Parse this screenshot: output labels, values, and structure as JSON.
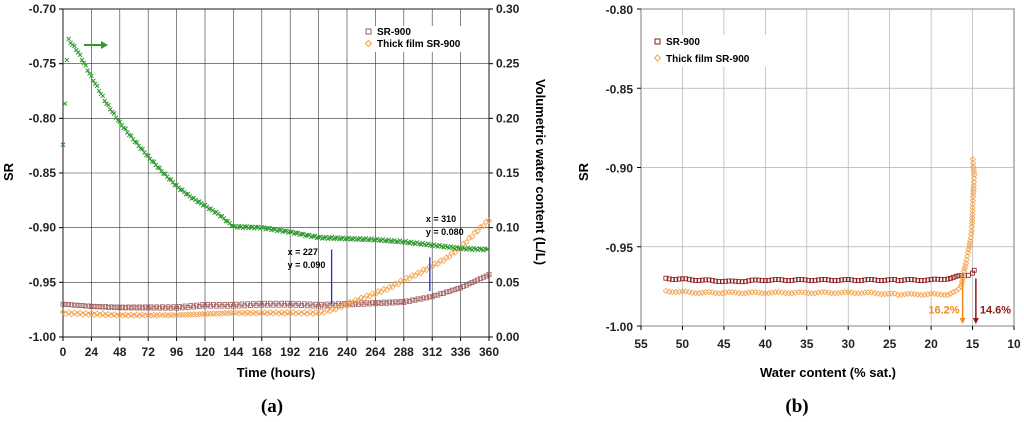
{
  "chart_data": [
    {
      "panel": "(a)",
      "type": "scatter",
      "xlabel": "Time (hours)",
      "ylabel": "SR",
      "y2label": "Volumetric water content (L/L)",
      "xlim": [
        0,
        360
      ],
      "ylim": [
        -1.0,
        -0.7
      ],
      "y2lim": [
        0.0,
        0.3
      ],
      "xticks": [
        0,
        24,
        48,
        72,
        96,
        120,
        144,
        168,
        192,
        216,
        240,
        264,
        288,
        312,
        336,
        360
      ],
      "yticks": [
        -0.7,
        -0.75,
        -0.8,
        -0.85,
        -0.9,
        -0.95,
        -1.0
      ],
      "y2ticks": [
        0.3,
        0.25,
        0.2,
        0.15,
        0.1,
        0.05,
        0.0
      ],
      "grid": true,
      "legend_position": "top-right",
      "series": [
        {
          "name": "SR-900",
          "marker": "square",
          "color": "#a05a5a",
          "axis": "left",
          "x": [
            0,
            24,
            48,
            72,
            96,
            120,
            144,
            168,
            192,
            216,
            240,
            264,
            288,
            312,
            336,
            360
          ],
          "y": [
            -0.97,
            -0.972,
            -0.973,
            -0.973,
            -0.973,
            -0.971,
            -0.971,
            -0.97,
            -0.97,
            -0.971,
            -0.97,
            -0.969,
            -0.968,
            -0.963,
            -0.955,
            -0.943
          ]
        },
        {
          "name": "Thick film SR-900",
          "marker": "diamond",
          "color": "#f5a04a",
          "axis": "left",
          "x": [
            0,
            24,
            48,
            72,
            96,
            120,
            144,
            168,
            192,
            216,
            228,
            240,
            252,
            264,
            276,
            288,
            300,
            312,
            324,
            336,
            348,
            360
          ],
          "y": [
            -0.978,
            -0.979,
            -0.98,
            -0.98,
            -0.98,
            -0.979,
            -0.978,
            -0.978,
            -0.978,
            -0.978,
            -0.975,
            -0.97,
            -0.965,
            -0.96,
            -0.955,
            -0.948,
            -0.942,
            -0.935,
            -0.928,
            -0.918,
            -0.905,
            -0.893
          ]
        },
        {
          "name": "Volumetric water content",
          "marker": "cross",
          "color": "#2e9a2e",
          "axis": "right",
          "x": [
            0,
            4,
            12,
            24,
            36,
            48,
            60,
            72,
            84,
            96,
            108,
            120,
            132,
            144,
            168,
            192,
            216,
            240,
            264,
            288,
            312,
            336,
            360
          ],
          "y": [
            0.175,
            0.273,
            0.262,
            0.238,
            0.215,
            0.196,
            0.18,
            0.165,
            0.151,
            0.138,
            0.128,
            0.12,
            0.112,
            0.101,
            0.1,
            0.096,
            0.091,
            0.09,
            0.089,
            0.087,
            0.084,
            0.081,
            0.08
          ]
        }
      ],
      "annotations": [
        {
          "text_lines": [
            "x = 227",
            "y = 0.090"
          ],
          "x": 227,
          "marker_y_range": [
            -0.97,
            -0.92
          ]
        },
        {
          "text_lines": [
            "x = 310",
            "y = 0.080"
          ],
          "x": 310,
          "marker_y_range": [
            -0.958,
            -0.927
          ]
        }
      ]
    },
    {
      "panel": "(b)",
      "type": "scatter",
      "xlabel": "Water content (% sat.)",
      "ylabel": "SR",
      "xlim": [
        55,
        10
      ],
      "ylim": [
        -1.0,
        -0.8
      ],
      "xticks": [
        55,
        50,
        45,
        40,
        35,
        30,
        25,
        20,
        15,
        10
      ],
      "yticks": [
        -0.8,
        -0.85,
        -0.9,
        -0.95,
        -1.0
      ],
      "grid": true,
      "legend_position": "top-left",
      "series": [
        {
          "name": "SR-900",
          "marker": "square",
          "color": "#8b1a1a",
          "x": [
            52,
            48,
            44,
            40,
            36,
            32,
            28,
            24,
            22,
            20,
            18,
            17,
            16,
            15.5,
            15,
            14.6
          ],
          "y": [
            -0.97,
            -0.971,
            -0.972,
            -0.971,
            -0.971,
            -0.971,
            -0.971,
            -0.971,
            -0.971,
            -0.971,
            -0.97,
            -0.969,
            -0.968,
            -0.968,
            -0.967,
            -0.963
          ]
        },
        {
          "name": "Thick film SR-900",
          "marker": "diamond",
          "color": "#f5a04a",
          "x": [
            52,
            48,
            44,
            40,
            36,
            32,
            28,
            24,
            22,
            20,
            18,
            17,
            16.4,
            16.2,
            15.8,
            15.4,
            15.1,
            15.0,
            14.8,
            15.0
          ],
          "y": [
            -0.978,
            -0.979,
            -0.979,
            -0.979,
            -0.979,
            -0.979,
            -0.979,
            -0.98,
            -0.98,
            -0.98,
            -0.98,
            -0.978,
            -0.975,
            -0.97,
            -0.96,
            -0.95,
            -0.94,
            -0.925,
            -0.905,
            -0.893
          ]
        }
      ],
      "annotations": [
        {
          "text": "16.2%",
          "x": 16.2,
          "color": "#f08a1e"
        },
        {
          "text": "14.6%",
          "x": 14.6,
          "color": "#8b1a1a"
        }
      ]
    }
  ]
}
